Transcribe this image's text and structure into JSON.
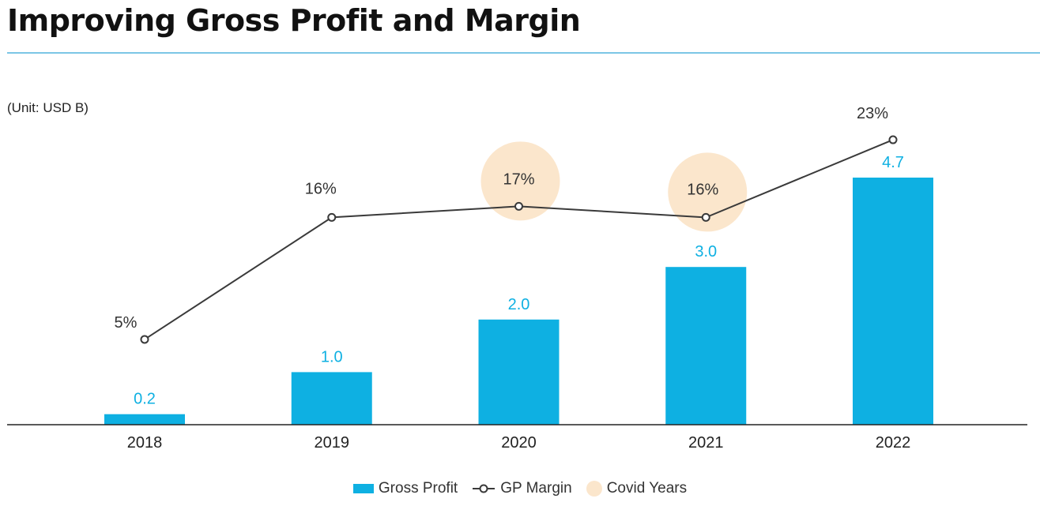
{
  "title": "Improving Gross Profit and Margin",
  "unit_label": "(Unit: USD B)",
  "colors": {
    "bar": "#0eb0e2",
    "line": "#3a3a3a",
    "covid": "#fbe6cc",
    "bar_label": "#0eb0e2",
    "rule": "#7cc6e6"
  },
  "chart_data": {
    "type": "bar",
    "title": "Improving Gross Profit and Margin",
    "categories": [
      "2018",
      "2019",
      "2020",
      "2021",
      "2022"
    ],
    "series": [
      {
        "name": "Gross Profit",
        "type": "bar",
        "values": [
          0.2,
          1.0,
          2.0,
          3.0,
          4.7
        ],
        "labels": [
          "0.2",
          "1.0",
          "2.0",
          "3.0",
          "4.7"
        ]
      },
      {
        "name": "GP Margin",
        "type": "line",
        "values": [
          5,
          16,
          17,
          16,
          23
        ],
        "labels": [
          "5%",
          "16%",
          "17%",
          "16%",
          "23%"
        ]
      }
    ],
    "highlight": {
      "name": "Covid Years",
      "categories": [
        "2020",
        "2021"
      ]
    },
    "ylim_bar": [
      0,
      5
    ],
    "ylim_line": [
      0,
      25
    ]
  },
  "legend": {
    "bar": "Gross Profit",
    "line": "GP Margin",
    "covid": "Covid Years"
  }
}
